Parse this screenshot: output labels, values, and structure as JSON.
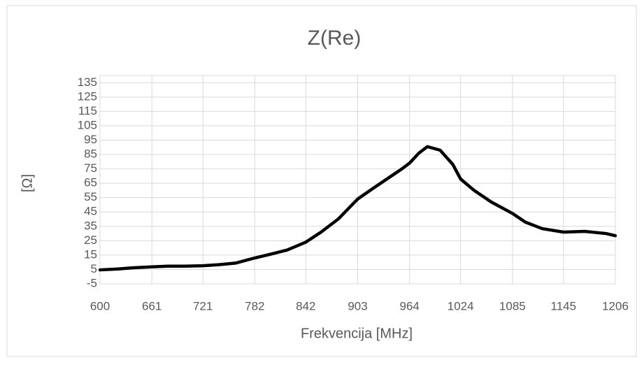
{
  "chart_data": {
    "type": "line",
    "title": "Z(Re)",
    "x_label": "Frekvencija [MHz]",
    "y_label": "[Ω]",
    "x": [
      600,
      620,
      640,
      661,
      680,
      700,
      721,
      740,
      760,
      782,
      800,
      820,
      842,
      860,
      880,
      903,
      920,
      940,
      955,
      964,
      975,
      985,
      1000,
      1015,
      1024,
      1040,
      1060,
      1085,
      1100,
      1120,
      1145,
      1170,
      1195,
      1206
    ],
    "series": [
      {
        "name": "Z(Re)",
        "color": "#000000",
        "values": [
          4.7,
          5.3,
          6.2,
          6.8,
          7.3,
          7.3,
          7.6,
          8.3,
          9.5,
          13.0,
          15.5,
          18.5,
          24.0,
          31.0,
          40.0,
          54.0,
          61.0,
          69.0,
          75.0,
          79.0,
          86.0,
          90.5,
          88.0,
          78.0,
          68.0,
          60.0,
          52.0,
          44.0,
          38.0,
          33.4,
          31.0,
          31.5,
          30.0,
          28.5
        ]
      }
    ],
    "xlim": [
      600,
      1206
    ],
    "xticks": [
      600,
      661,
      721,
      782,
      842,
      903,
      964,
      1024,
      1085,
      1145,
      1206
    ],
    "ylim": [
      -5,
      140
    ],
    "yticks": [
      -5,
      5,
      15,
      25,
      35,
      45,
      55,
      65,
      75,
      85,
      95,
      105,
      115,
      125,
      135
    ],
    "grid": true
  }
}
